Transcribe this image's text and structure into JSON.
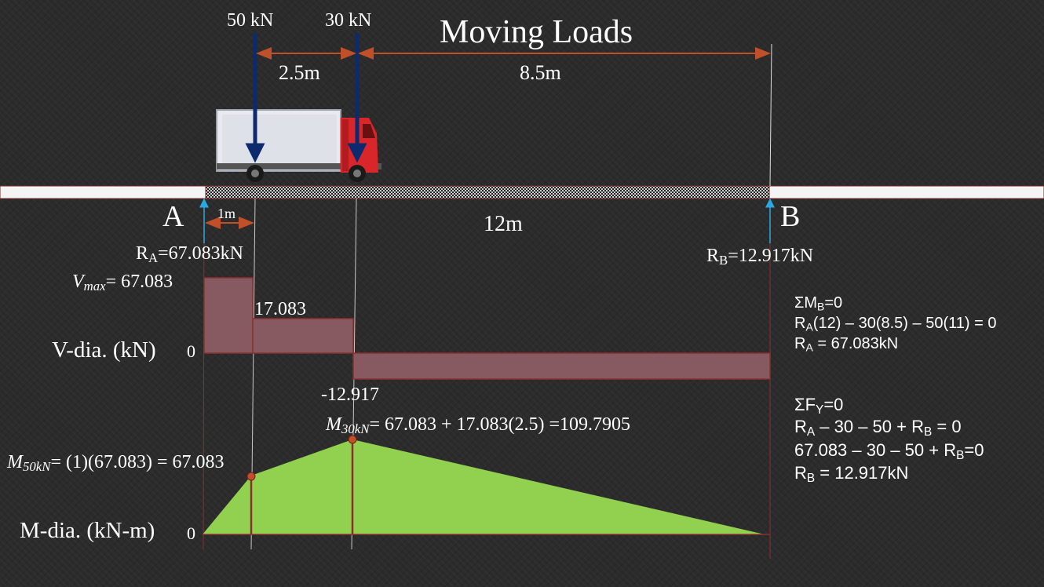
{
  "title": "Moving Loads",
  "loads": {
    "load1": "50 kN",
    "load2": "30 kN",
    "spacing": "2.5m",
    "to_support": "8.5m"
  },
  "beam": {
    "support_a": "A",
    "support_b": "B",
    "span": "12m",
    "offset": "1m",
    "reaction_a": {
      "sym": "R",
      "sub": "A",
      "val": "=67.083kN"
    },
    "reaction_b": {
      "sym": "R",
      "sub": "B",
      "val": "=12.917kN"
    }
  },
  "shear": {
    "axis_label": "V-dia. (kN)",
    "zero": "0",
    "vmax_sym": "V",
    "vmax_sub": "max",
    "vmax_val": "= 67.083",
    "mid_label": "17.083",
    "neg_label": "-12.917",
    "fill": "#865a60"
  },
  "moment": {
    "axis_label": "M-dia. (kN-m)",
    "zero": "0",
    "m50_sym": "M",
    "m50_sub": "50kN",
    "m50_expr": "= (1)(67.083) =  67.083",
    "m30_sym": "M",
    "m30_sub": "30kN",
    "m30_expr": "= 67.083 + 17.083(2.5) =109.7905",
    "fill": "#92d050"
  },
  "equations": {
    "sum_mb": {
      "pre": "ΣM",
      "sub": "B",
      "post": "=0"
    },
    "mb_eq": {
      "pre": "R",
      "sub": "A",
      "post": "(12) – 30(8.5) – 50(11) = 0"
    },
    "ra_result": {
      "pre": "R",
      "sub": "A",
      "post": " = 67.083kN"
    },
    "sum_fy": {
      "pre": "ΣF",
      "sub": "Y",
      "post": "=0"
    },
    "fy_eq": {
      "pre": "R",
      "sub": "A",
      "mid": " – 30 – 50 + R",
      "sub2": "B",
      "post": " = 0"
    },
    "fy_sub": {
      "pre": "67.083 – 30 – 50  + R",
      "sub": "B",
      "post": "=0"
    },
    "rb_result": {
      "pre": "R",
      "sub": "B",
      "post": " = 12.917kN"
    }
  },
  "colors": {
    "arrow_load": "#0d2a6e",
    "dimension": "#c0502a",
    "reaction_arrow": "#2aa8e0",
    "beam_edge": "#7a2a2a"
  }
}
